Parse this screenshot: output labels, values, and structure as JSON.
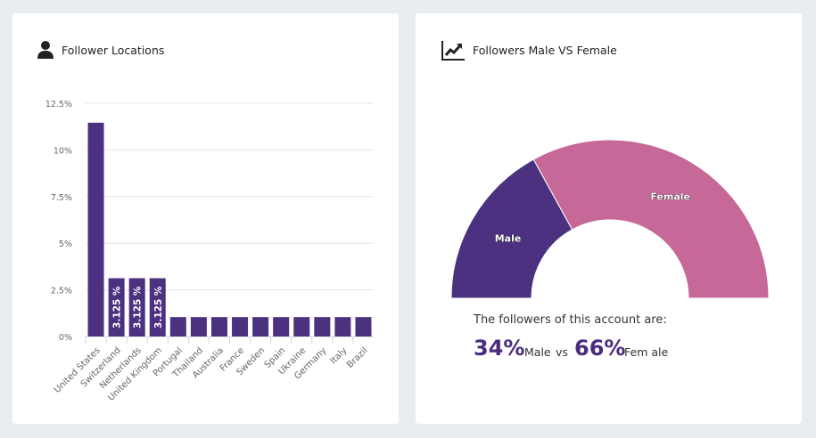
{
  "left_panel": {
    "title": "Follower Locations",
    "icon": "user-icon"
  },
  "right_panel": {
    "title": "Followers Male VS Female",
    "icon": "line-chart-icon",
    "summary_text": "The followers of this account are:",
    "male_pct": "34%",
    "male_label": "Male",
    "vs_label": "vs",
    "female_pct": "66%",
    "female_label": "Fem ale"
  },
  "chart_data": [
    {
      "type": "bar",
      "title": "Follower Locations",
      "categories": [
        "United States",
        "Switzerland",
        "Netherlands",
        "United Kingdom",
        "Portugal",
        "Thailand",
        "Australia",
        "France",
        "Sweden",
        "Spain",
        "Ukraine",
        "Germany",
        "Italy",
        "Brazil"
      ],
      "values": [
        11.458,
        3.125,
        3.125,
        3.125,
        1.042,
        1.042,
        1.042,
        1.042,
        1.042,
        1.042,
        1.042,
        1.042,
        1.042,
        1.042
      ],
      "data_labels": [
        "",
        "3.125 %",
        "3.125 %",
        "3.125 %",
        "",
        "",
        "",
        "",
        "",
        "",
        "",
        "",
        "",
        ""
      ],
      "yticks": [
        "0%",
        "2.5%",
        "5%",
        "7.5%",
        "10%",
        "12.5%"
      ],
      "ylim": [
        0,
        12.5
      ],
      "grid": true,
      "color": "#4b3180"
    },
    {
      "type": "pie",
      "title": "Followers Male VS Female",
      "labels": [
        "Male",
        "Female"
      ],
      "values": [
        34,
        66
      ],
      "colors": [
        "#4b3180",
        "#c66898"
      ],
      "style": "semi-donut"
    }
  ]
}
